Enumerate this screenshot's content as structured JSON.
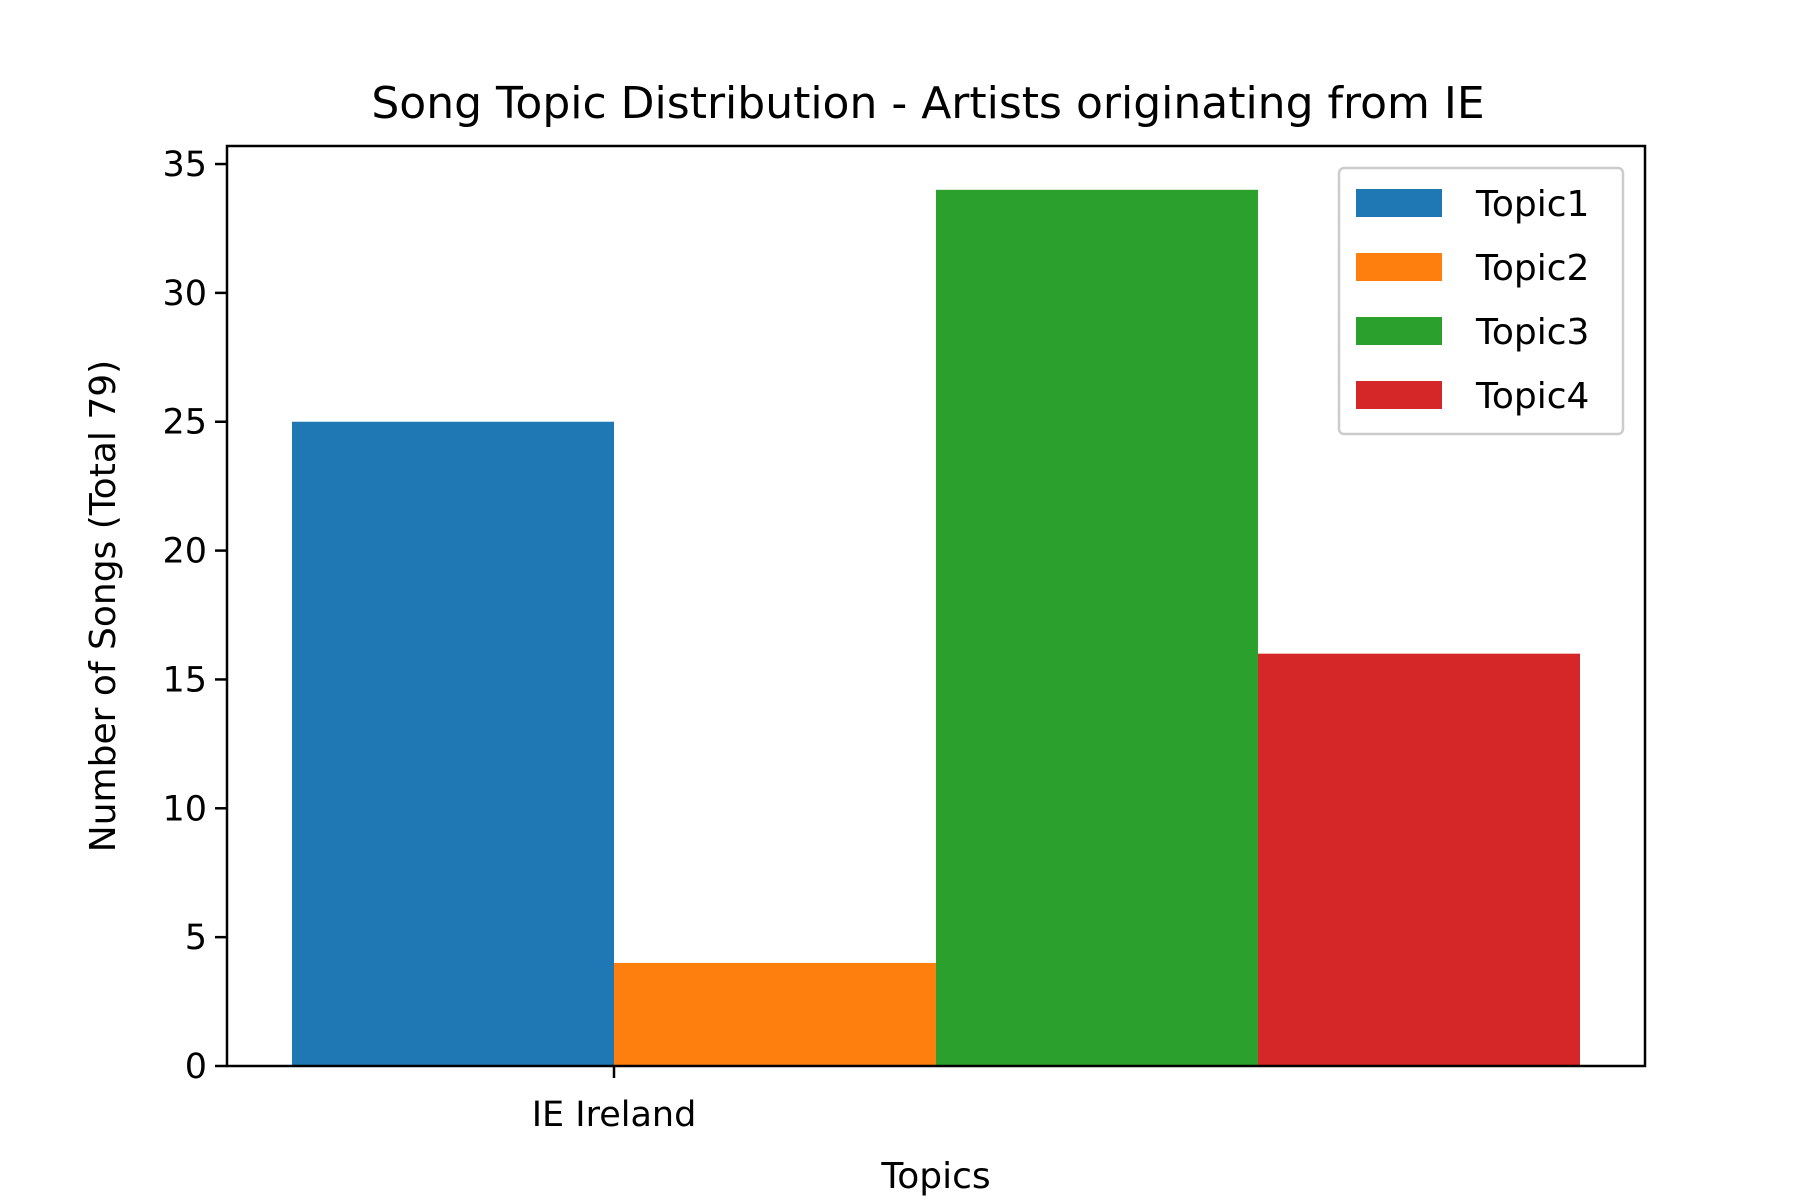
{
  "chart_data": {
    "type": "bar",
    "title": "Song Topic Distribution - Artists originating from IE",
    "xlabel": "Topics",
    "ylabel": "Number of Songs (Total 79)",
    "categories": [
      "IE Ireland"
    ],
    "series": [
      {
        "name": "Topic1",
        "values": [
          25
        ],
        "color": "#1f77b4"
      },
      {
        "name": "Topic2",
        "values": [
          4
        ],
        "color": "#ff7f0e"
      },
      {
        "name": "Topic3",
        "values": [
          34
        ],
        "color": "#2ca02c"
      },
      {
        "name": "Topic4",
        "values": [
          16
        ],
        "color": "#d62728"
      }
    ],
    "ylim": [
      0,
      35.7
    ],
    "yticks": [
      0,
      5,
      10,
      15,
      20,
      25,
      30,
      35
    ],
    "ytick_labels": [
      "0",
      "5",
      "10",
      "15",
      "20",
      "25",
      "30",
      "35"
    ],
    "grid": false,
    "legend": "top-right"
  }
}
